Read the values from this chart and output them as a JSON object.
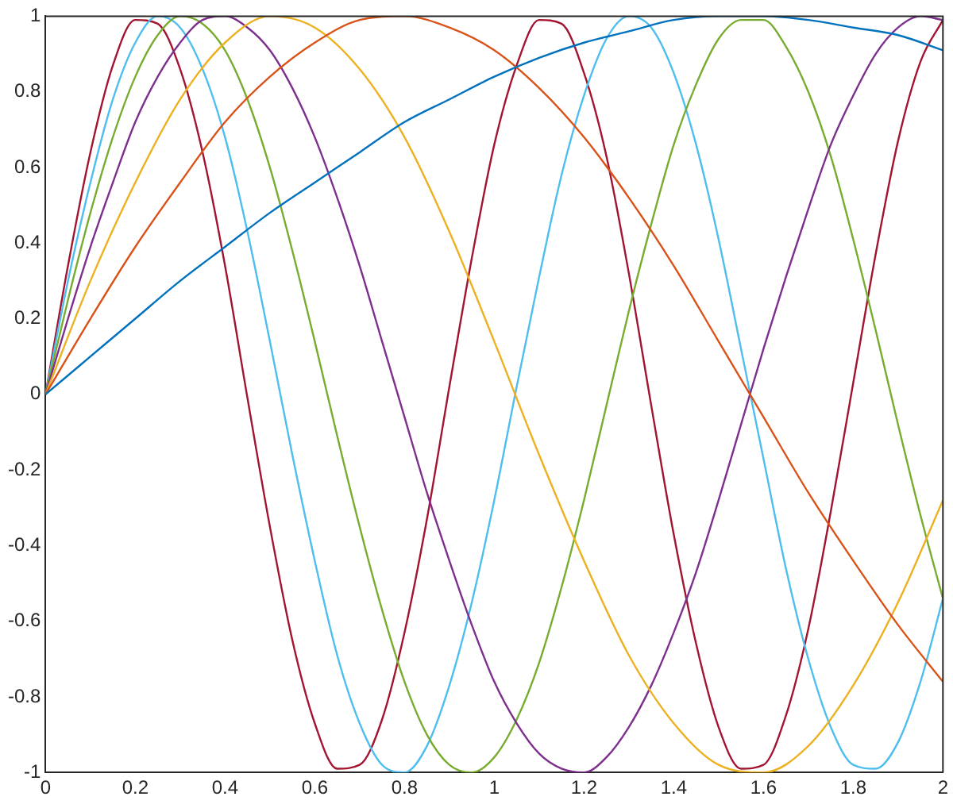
{
  "chart_data": {
    "type": "line",
    "x": [
      0,
      0.05,
      0.1,
      0.15,
      0.2,
      0.25,
      0.3,
      0.35,
      0.4,
      0.45,
      0.5,
      0.55,
      0.6,
      0.65,
      0.7,
      0.75,
      0.8,
      0.85,
      0.9,
      0.95,
      1,
      1.05,
      1.1,
      1.15,
      1.2,
      1.25,
      1.3,
      1.35,
      1.4,
      1.45,
      1.5,
      1.55,
      1.6,
      1.65,
      1.7,
      1.75,
      1.8,
      1.85,
      1.9,
      1.95,
      2
    ],
    "series": [
      {
        "color": "#0072bd",
        "x": [
          0,
          0.1,
          0.2,
          0.3,
          0.4,
          0.5,
          0.6,
          0.7,
          0.8,
          0.9,
          1,
          1.1,
          1.2,
          1.3,
          1.4,
          1.5,
          1.6,
          1.7,
          1.8,
          1.9,
          2
        ],
        "values": [
          0,
          0.1,
          0.2,
          0.3,
          0.39,
          0.48,
          0.56,
          0.64,
          0.72,
          0.78,
          0.84,
          0.89,
          0.93,
          0.96,
          0.99,
          1,
          1,
          0.99,
          0.97,
          0.95,
          0.91
        ]
      },
      {
        "color": "#d95319",
        "x": [
          0,
          0.1,
          0.2,
          0.3,
          0.4,
          0.5,
          0.6,
          0.7,
          0.8,
          0.9,
          1,
          1.1,
          1.2,
          1.3,
          1.4,
          1.5,
          1.6,
          1.7,
          1.8,
          1.9,
          2
        ],
        "values": [
          0,
          0.2,
          0.39,
          0.56,
          0.72,
          0.84,
          0.93,
          0.99,
          1,
          0.97,
          0.91,
          0.81,
          0.68,
          0.52,
          0.34,
          0.14,
          -0.06,
          -0.26,
          -0.44,
          -0.61,
          -0.76
        ]
      },
      {
        "color": "#edb120",
        "x": [
          0,
          0.1,
          0.2,
          0.3,
          0.4,
          0.5,
          0.6,
          0.7,
          0.8,
          0.9,
          1,
          1.1,
          1.2,
          1.3,
          1.4,
          1.5,
          1.6,
          1.7,
          1.8,
          1.9,
          2
        ],
        "values": [
          0,
          0.3,
          0.56,
          0.78,
          0.93,
          1,
          0.97,
          0.86,
          0.68,
          0.43,
          0.14,
          -0.16,
          -0.44,
          -0.69,
          -0.87,
          -0.98,
          -1,
          -0.93,
          -0.77,
          -0.55,
          -0.28
        ]
      },
      {
        "color": "#7e2f8e",
        "values": [
          0,
          0.2,
          0.39,
          0.56,
          0.72,
          0.84,
          0.93,
          0.99,
          1,
          0.97,
          0.91,
          0.81,
          0.68,
          0.52,
          0.34,
          0.14,
          -0.06,
          -0.26,
          -0.44,
          -0.61,
          -0.76,
          -0.87,
          -0.95,
          -0.99,
          -1,
          -0.96,
          -0.88,
          -0.77,
          -0.63,
          -0.47,
          -0.28,
          -0.08,
          0.12,
          0.31,
          0.49,
          0.66,
          0.79,
          0.9,
          0.97,
          1,
          0.99
        ]
      },
      {
        "color": "#77ac30",
        "values": [
          0,
          0.25,
          0.48,
          0.68,
          0.84,
          0.95,
          1,
          0.98,
          0.91,
          0.78,
          0.6,
          0.38,
          0.14,
          -0.11,
          -0.35,
          -0.57,
          -0.76,
          -0.9,
          -0.98,
          -1,
          -0.96,
          -0.86,
          -0.71,
          -0.51,
          -0.28,
          -0.03,
          0.22,
          0.45,
          0.66,
          0.82,
          0.94,
          0.99,
          0.99,
          0.92,
          0.8,
          0.63,
          0.41,
          0.17,
          -0.08,
          -0.32,
          -0.54
        ]
      },
      {
        "color": "#4dbeee",
        "values": [
          0,
          0.3,
          0.56,
          0.78,
          0.93,
          1,
          0.97,
          0.86,
          0.68,
          0.43,
          0.14,
          -0.16,
          -0.44,
          -0.69,
          -0.87,
          -0.98,
          -1,
          -0.93,
          -0.77,
          -0.55,
          -0.28,
          0.02,
          0.31,
          0.58,
          0.79,
          0.94,
          1,
          0.97,
          0.85,
          0.66,
          0.41,
          0.12,
          -0.17,
          -0.46,
          -0.7,
          -0.88,
          -0.98,
          -0.99,
          -0.92,
          -0.76,
          -0.54
        ]
      },
      {
        "color": "#a2142f",
        "values": [
          0,
          0.34,
          0.64,
          0.87,
          0.99,
          0.98,
          0.86,
          0.64,
          0.34,
          -0.01,
          -0.35,
          -0.65,
          -0.87,
          -0.99,
          -0.98,
          -0.86,
          -0.63,
          -0.33,
          0.02,
          0.36,
          0.66,
          0.87,
          0.99,
          0.98,
          0.85,
          0.63,
          0.32,
          -0.03,
          -0.37,
          -0.66,
          -0.88,
          -0.99,
          -0.98,
          -0.85,
          -0.62,
          -0.31,
          0.03,
          0.37,
          0.67,
          0.88,
          0.99
        ]
      }
    ],
    "xlim": [
      0,
      2
    ],
    "xticks": [
      0,
      0.2,
      0.4,
      0.6,
      0.8,
      1,
      1.2,
      1.4,
      1.6,
      1.8,
      2
    ],
    "ylim": [
      -1,
      1
    ],
    "yticks": [
      -1,
      -0.8,
      -0.6,
      -0.4,
      -0.2,
      0,
      0.2,
      0.4,
      0.6,
      0.8,
      1
    ],
    "grid": false,
    "legend": false
  }
}
